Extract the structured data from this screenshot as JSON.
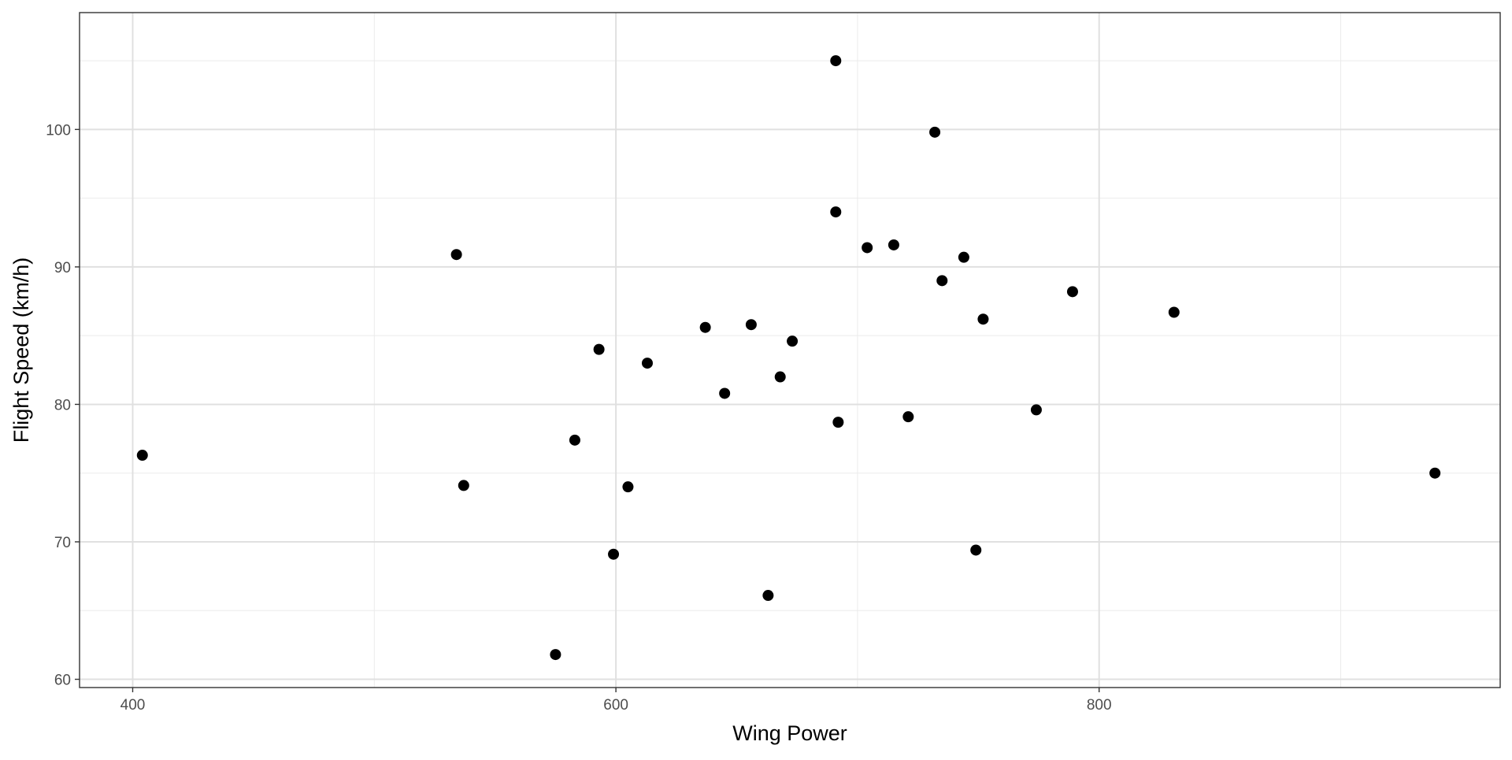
{
  "chart_data": {
    "type": "scatter",
    "title": "",
    "xlabel": "Wing Power",
    "ylabel": "Flight Speed (km/h)",
    "xlim": [
      378,
      966
    ],
    "ylim": [
      59.4,
      108.5
    ],
    "x_ticks": [
      400,
      600,
      800
    ],
    "y_ticks": [
      60,
      70,
      80,
      90,
      100
    ],
    "x_tick_labels": [
      "400",
      "600",
      "800"
    ],
    "y_tick_labels": [
      "60",
      "70",
      "80",
      "90",
      "100"
    ],
    "grid": true,
    "point_color": "#000000",
    "series": [
      {
        "points": [
          {
            "x": 404,
            "y": 76.3
          },
          {
            "x": 534,
            "y": 90.9
          },
          {
            "x": 537,
            "y": 74.1
          },
          {
            "x": 575,
            "y": 61.8
          },
          {
            "x": 583,
            "y": 77.4
          },
          {
            "x": 593,
            "y": 84.0
          },
          {
            "x": 599,
            "y": 69.1
          },
          {
            "x": 605,
            "y": 74.0
          },
          {
            "x": 613,
            "y": 83.0
          },
          {
            "x": 637,
            "y": 85.6
          },
          {
            "x": 645,
            "y": 80.8
          },
          {
            "x": 656,
            "y": 85.8
          },
          {
            "x": 663,
            "y": 66.1
          },
          {
            "x": 668,
            "y": 82.0
          },
          {
            "x": 673,
            "y": 84.6
          },
          {
            "x": 691,
            "y": 105.0
          },
          {
            "x": 691,
            "y": 94.0
          },
          {
            "x": 692,
            "y": 78.7
          },
          {
            "x": 704,
            "y": 91.4
          },
          {
            "x": 715,
            "y": 91.6
          },
          {
            "x": 721,
            "y": 79.1
          },
          {
            "x": 732,
            "y": 99.8
          },
          {
            "x": 735,
            "y": 89.0
          },
          {
            "x": 744,
            "y": 90.7
          },
          {
            "x": 749,
            "y": 69.4
          },
          {
            "x": 752,
            "y": 86.2
          },
          {
            "x": 774,
            "y": 79.6
          },
          {
            "x": 789,
            "y": 88.2
          },
          {
            "x": 831,
            "y": 86.7
          },
          {
            "x": 939,
            "y": 75.0
          }
        ]
      }
    ]
  }
}
